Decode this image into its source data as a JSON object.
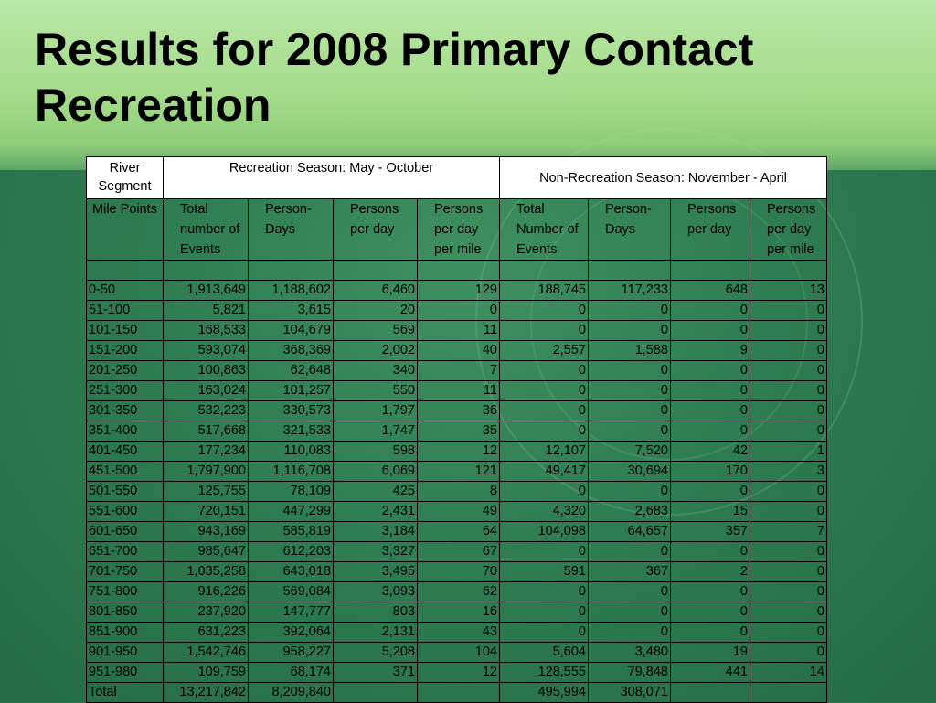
{
  "title": {
    "line1": "Results for 2008 Primary Contact",
    "line2": "Recreation"
  },
  "table": {
    "header_row1": {
      "segment": "River Segment",
      "group1": "Recreation Season: May - October",
      "group2": "Non-Recreation Season: November - April"
    },
    "header_row2": [
      "Mile Points",
      "Total number of Events",
      "Person- Days",
      "Persons per day",
      "Persons per day per mile",
      "Total Number of Events",
      "Person- Days",
      "Persons per day",
      "Persons per day per mile"
    ],
    "rows": [
      [
        "0-50",
        "1,913,649",
        "1,188,602",
        "6,460",
        "129",
        "188,745",
        "117,233",
        "648",
        "13"
      ],
      [
        "51-100",
        "5,821",
        "3,615",
        "20",
        "0",
        "0",
        "0",
        "0",
        "0"
      ],
      [
        "101-150",
        "168,533",
        "104,679",
        "569",
        "11",
        "0",
        "0",
        "0",
        "0"
      ],
      [
        "151-200",
        "593,074",
        "368,369",
        "2,002",
        "40",
        "2,557",
        "1,588",
        "9",
        "0"
      ],
      [
        "201-250",
        "100,863",
        "62,648",
        "340",
        "7",
        "0",
        "0",
        "0",
        "0"
      ],
      [
        "251-300",
        "163,024",
        "101,257",
        "550",
        "11",
        "0",
        "0",
        "0",
        "0"
      ],
      [
        "301-350",
        "532,223",
        "330,573",
        "1,797",
        "36",
        "0",
        "0",
        "0",
        "0"
      ],
      [
        "351-400",
        "517,668",
        "321,533",
        "1,747",
        "35",
        "0",
        "0",
        "0",
        "0"
      ],
      [
        "401-450",
        "177,234",
        "110,083",
        "598",
        "12",
        "12,107",
        "7,520",
        "42",
        "1"
      ],
      [
        "451-500",
        "1,797,900",
        "1,116,708",
        "6,069",
        "121",
        "49,417",
        "30,694",
        "170",
        "3"
      ],
      [
        "501-550",
        "125,755",
        "78,109",
        "425",
        "8",
        "0",
        "0",
        "0",
        "0"
      ],
      [
        "551-600",
        "720,151",
        "447,299",
        "2,431",
        "49",
        "4,320",
        "2,683",
        "15",
        "0"
      ],
      [
        "601-650",
        "943,169",
        "585,819",
        "3,184",
        "64",
        "104,098",
        "64,657",
        "357",
        "7"
      ],
      [
        "651-700",
        "985,647",
        "612,203",
        "3,327",
        "67",
        "0",
        "0",
        "0",
        "0"
      ],
      [
        "701-750",
        "1,035,258",
        "643,018",
        "3,495",
        "70",
        "591",
        "367",
        "2",
        "0"
      ],
      [
        "751-800",
        "916,226",
        "569,084",
        "3,093",
        "62",
        "0",
        "0",
        "0",
        "0"
      ],
      [
        "801-850",
        "237,920",
        "147,777",
        "803",
        "16",
        "0",
        "0",
        "0",
        "0"
      ],
      [
        "851-900",
        "631,223",
        "392,064",
        "2,131",
        "43",
        "0",
        "0",
        "0",
        "0"
      ],
      [
        "901-950",
        "1,542,746",
        "958,227",
        "5,208",
        "104",
        "5,604",
        "3,480",
        "19",
        "0"
      ],
      [
        "951-980",
        "109,759",
        "68,174",
        "371",
        "12",
        "128,555",
        "79,848",
        "441",
        "14"
      ],
      [
        "Total",
        "13,217,842",
        "8,209,840",
        "",
        "",
        "495,994",
        "308,071",
        "",
        ""
      ]
    ]
  }
}
